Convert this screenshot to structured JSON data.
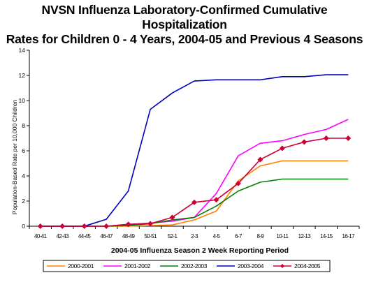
{
  "chart_data": {
    "type": "line",
    "title_line1": "NVSN Influenza Laboratory-Confirmed Cumulative Hospitalization",
    "title_line2": "Rates for Children 0 - 4 Years, 2004-05 and Previous 4 Seasons",
    "xlabel": "2004-05 Influenza Season 2 Week Reporting Period",
    "ylabel": "Population-Based Rate per 10,000 Children",
    "ylim": [
      0,
      14
    ],
    "yticks": [
      "0",
      "2",
      "4",
      "6",
      "8",
      "10",
      "12",
      "14"
    ],
    "categories": [
      "40-41",
      "42-43",
      "44-45",
      "46-47",
      "48-49",
      "50-51",
      "52-1",
      "2-3",
      "4-5",
      "6-7",
      "8-9",
      "10-11",
      "12-13",
      "14-15",
      "16-17"
    ],
    "grid": false,
    "legend_position": "bottom",
    "series": [
      {
        "name": "2000-2001",
        "color": "#ff8000",
        "marker": "none",
        "values": [
          0,
          0,
          0,
          0,
          0,
          0.05,
          0.1,
          0.5,
          1.2,
          3.6,
          4.8,
          5.2,
          5.2,
          5.2,
          5.2
        ]
      },
      {
        "name": "2001-2002",
        "color": "#ff00ff",
        "marker": "none",
        "values": [
          0,
          0,
          0,
          0,
          0.15,
          0.25,
          0.4,
          0.7,
          2.6,
          5.6,
          6.6,
          6.8,
          7.3,
          7.7,
          8.5
        ]
      },
      {
        "name": "2002-2003",
        "color": "#008000",
        "marker": "none",
        "values": [
          0,
          0,
          0,
          0,
          0.05,
          0.2,
          0.5,
          0.7,
          1.6,
          2.8,
          3.5,
          3.75,
          3.75,
          3.75,
          3.75
        ]
      },
      {
        "name": "2003-2004",
        "color": "#0000c0",
        "marker": "none",
        "values": [
          0,
          0,
          0,
          0.55,
          2.8,
          9.3,
          10.6,
          11.55,
          11.65,
          11.65,
          11.65,
          11.9,
          11.9,
          12.05,
          12.05
        ]
      },
      {
        "name": "2004-2005",
        "color": "#cc0033",
        "marker": "diamond",
        "values": [
          0,
          0,
          0,
          0,
          0.15,
          0.2,
          0.7,
          1.9,
          2.1,
          3.4,
          5.3,
          6.2,
          6.7,
          7.0,
          7.0
        ]
      }
    ]
  }
}
